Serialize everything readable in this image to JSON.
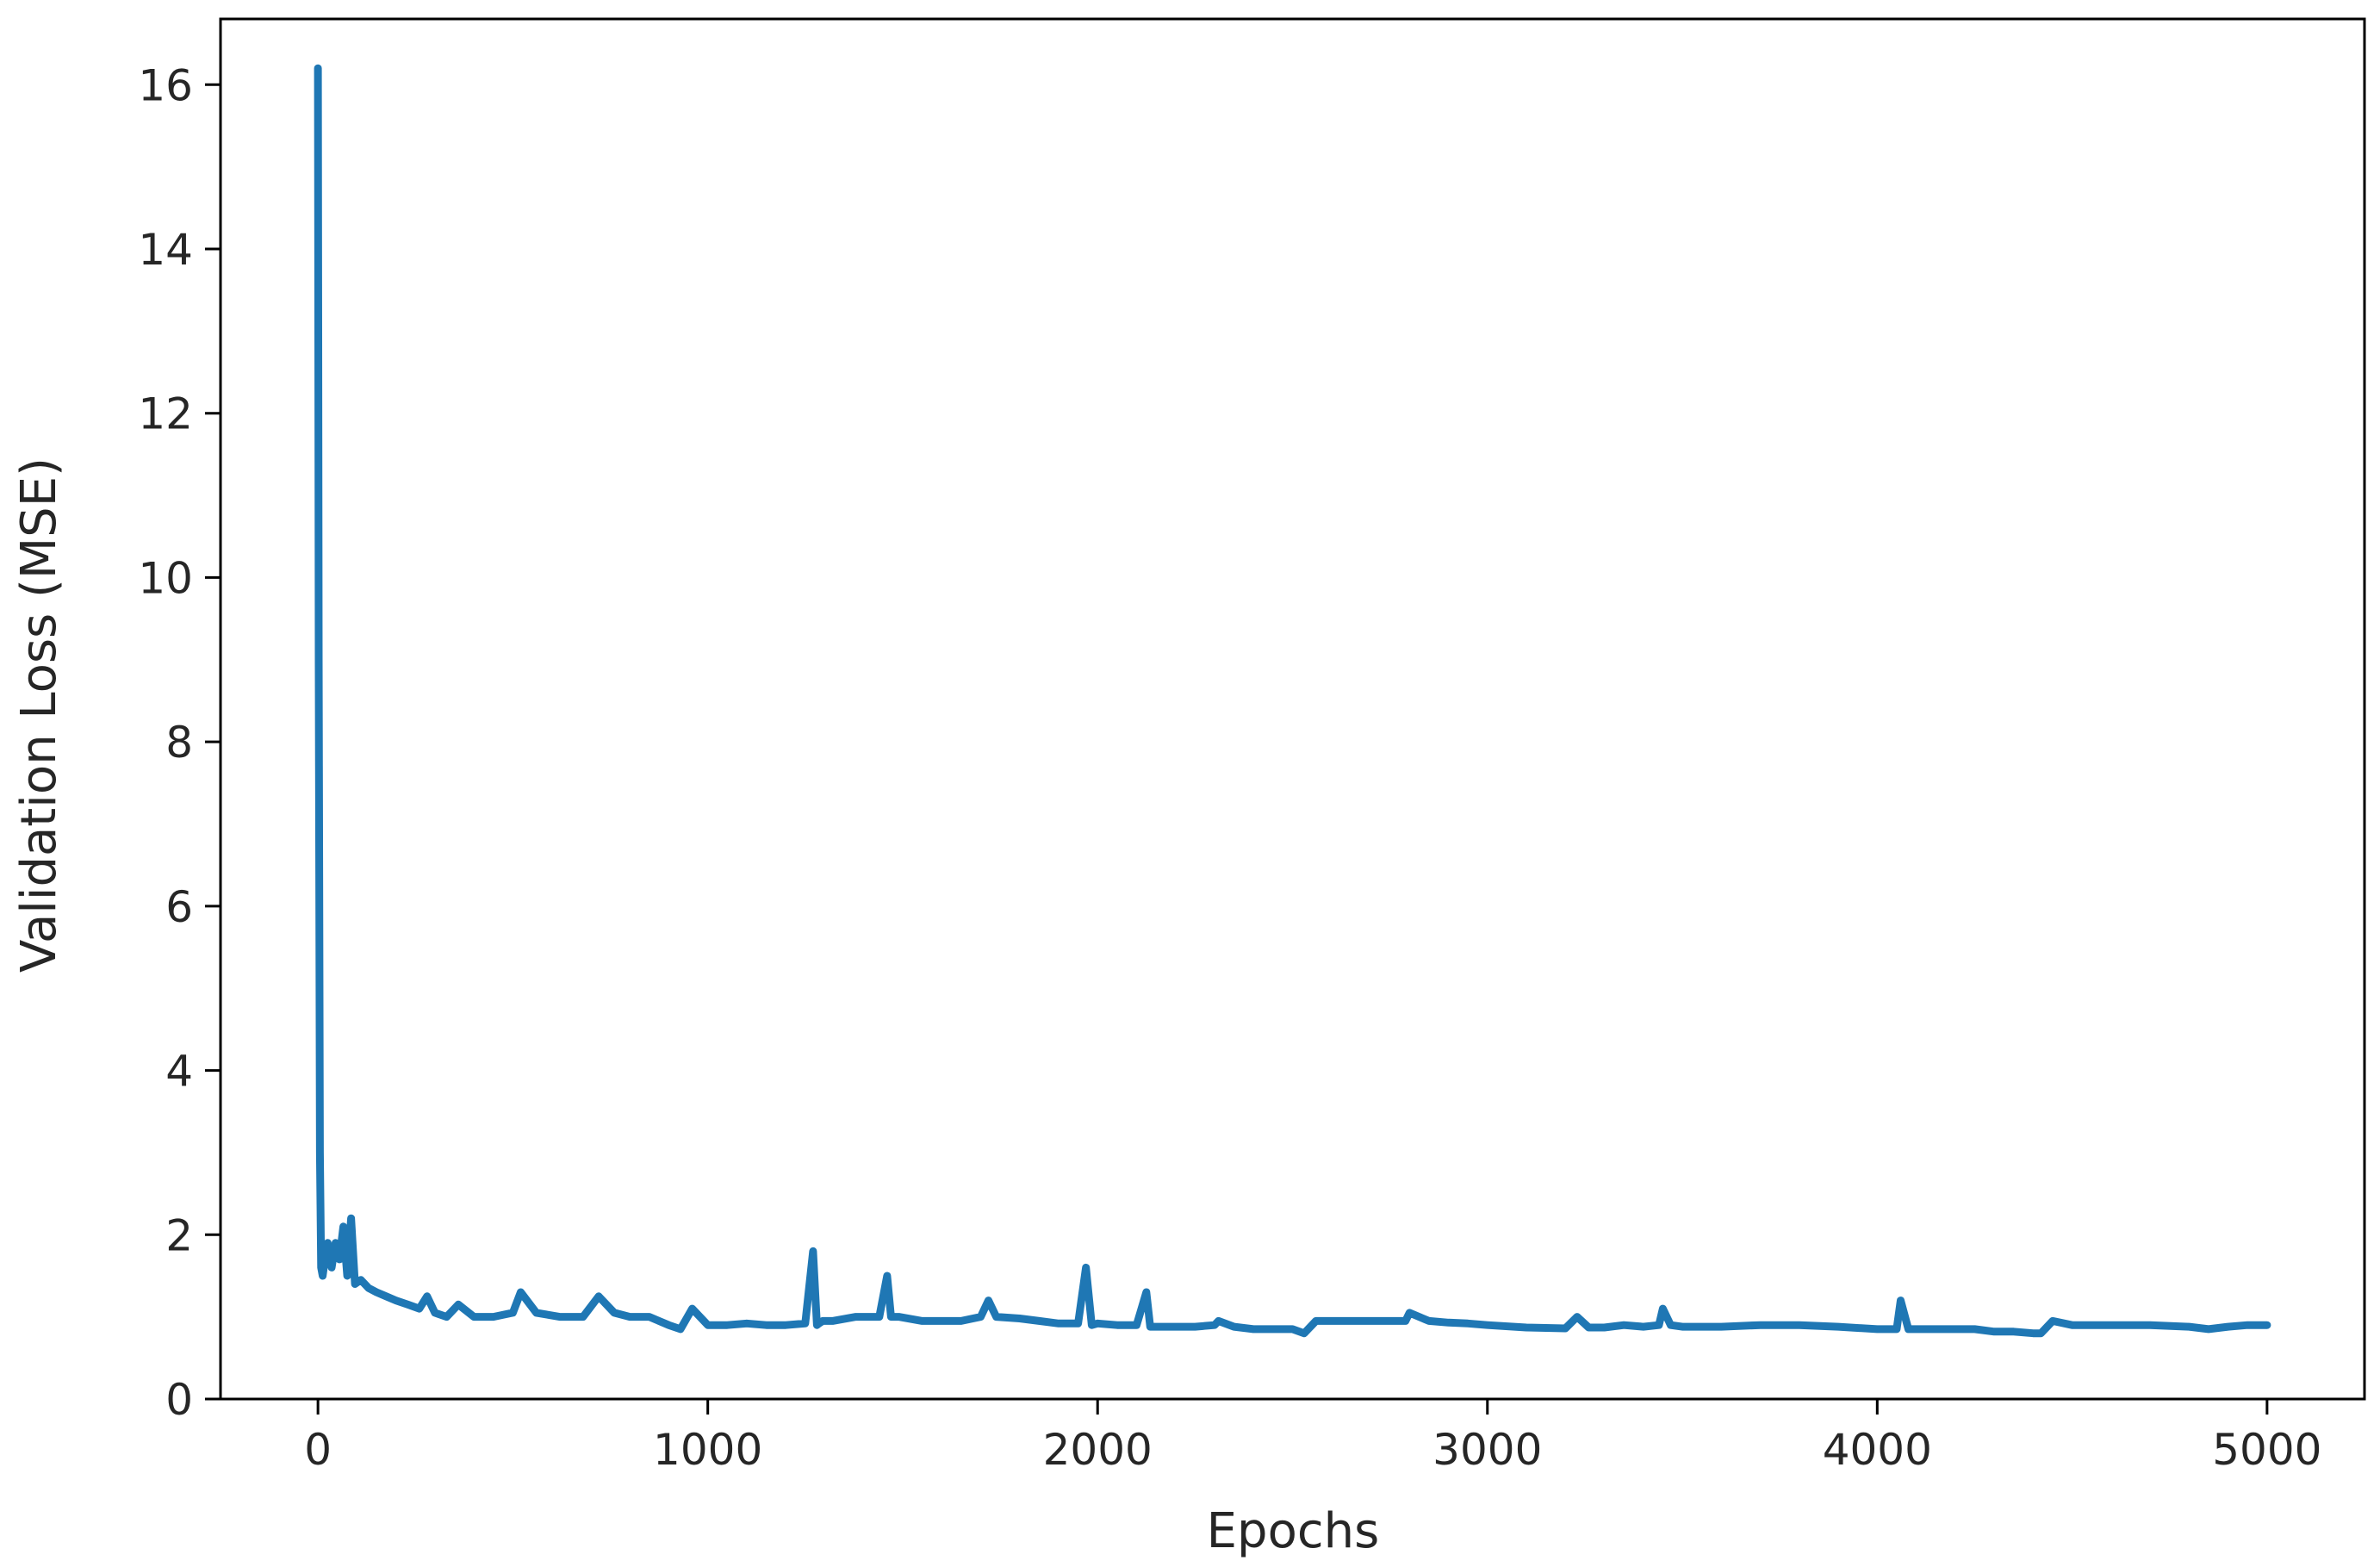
{
  "chart_data": {
    "type": "line",
    "title": "",
    "xlabel": "Epochs",
    "ylabel": "Validation Loss (MSE)",
    "xlim": [
      -250,
      5250
    ],
    "ylim": [
      0,
      16.8
    ],
    "xticks": [
      0,
      1000,
      2000,
      3000,
      4000,
      5000
    ],
    "yticks": [
      0,
      2,
      4,
      6,
      8,
      10,
      12,
      14,
      16
    ],
    "grid": false,
    "legend": "none",
    "line_color": "#1f77b4",
    "series": [
      {
        "x": [
          0,
          2,
          5,
          8,
          12,
          18,
          25,
          35,
          45,
          55,
          65,
          75,
          85,
          95,
          110,
          130,
          150,
          175,
          200,
          230,
          260,
          280,
          300,
          330,
          360,
          400,
          450,
          500,
          520,
          560,
          620,
          680,
          720,
          760,
          800,
          850,
          900,
          930,
          960,
          1000,
          1050,
          1100,
          1150,
          1200,
          1250,
          1270,
          1280,
          1285,
          1295,
          1320,
          1380,
          1440,
          1460,
          1470,
          1490,
          1550,
          1600,
          1650,
          1700,
          1720,
          1740,
          1800,
          1850,
          1900,
          1950,
          1970,
          1985,
          2000,
          2050,
          2100,
          2125,
          2135,
          2150,
          2200,
          2250,
          2300,
          2310,
          2350,
          2400,
          2450,
          2500,
          2530,
          2560,
          2600,
          2700,
          2790,
          2800,
          2850,
          2900,
          2950,
          3000,
          3100,
          3200,
          3230,
          3260,
          3300,
          3350,
          3400,
          3440,
          3450,
          3470,
          3500,
          3600,
          3700,
          3800,
          3900,
          4000,
          4050,
          4060,
          4080,
          4150,
          4200,
          4250,
          4300,
          4350,
          4400,
          4420,
          4450,
          4500,
          4600,
          4700,
          4800,
          4850,
          4900,
          4950,
          5000
        ],
        "y": [
          16.2,
          9.0,
          3.0,
          1.6,
          1.5,
          1.7,
          1.9,
          1.6,
          1.9,
          1.7,
          2.1,
          1.5,
          2.2,
          1.4,
          1.45,
          1.35,
          1.3,
          1.25,
          1.2,
          1.15,
          1.1,
          1.25,
          1.05,
          1.0,
          1.15,
          1.0,
          1.0,
          1.05,
          1.3,
          1.05,
          1.0,
          1.0,
          1.25,
          1.05,
          1.0,
          1.0,
          0.9,
          0.85,
          1.1,
          0.9,
          0.9,
          0.92,
          0.9,
          0.9,
          0.92,
          1.8,
          0.9,
          0.92,
          0.95,
          0.95,
          1.0,
          1.0,
          1.5,
          1.0,
          1.0,
          0.95,
          0.95,
          0.95,
          1.0,
          1.2,
          1.0,
          0.98,
          0.95,
          0.92,
          0.92,
          1.6,
          0.9,
          0.92,
          0.9,
          0.9,
          1.3,
          0.88,
          0.88,
          0.88,
          0.88,
          0.9,
          0.95,
          0.88,
          0.85,
          0.85,
          0.85,
          0.8,
          0.95,
          0.95,
          0.95,
          0.95,
          1.05,
          0.95,
          0.93,
          0.92,
          0.9,
          0.87,
          0.86,
          1.0,
          0.87,
          0.87,
          0.9,
          0.88,
          0.9,
          1.1,
          0.9,
          0.88,
          0.88,
          0.9,
          0.9,
          0.88,
          0.85,
          0.85,
          1.2,
          0.85,
          0.85,
          0.85,
          0.85,
          0.82,
          0.82,
          0.8,
          0.8,
          0.95,
          0.9,
          0.9,
          0.9,
          0.88,
          0.85,
          0.88,
          0.9,
          0.9
        ]
      }
    ]
  }
}
